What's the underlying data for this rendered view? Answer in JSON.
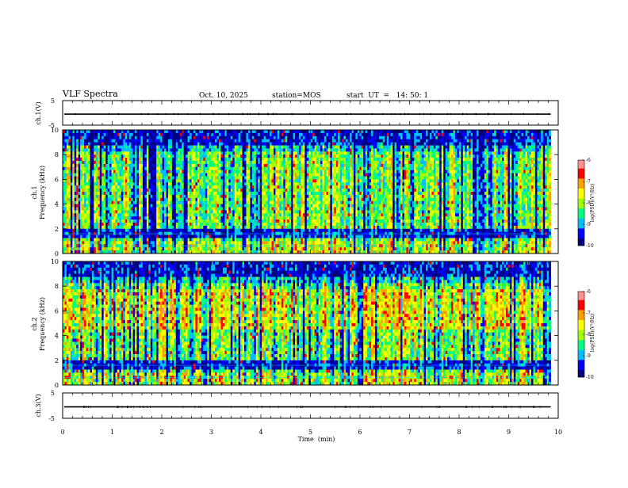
{
  "header": {
    "title": "VLF Spectra",
    "date": "Oct. 10, 2025",
    "station": "station=MOS",
    "start": "start  UT  =   14: 50: 1"
  },
  "chart_data": [
    {
      "type": "line",
      "name": "ch1-waveform",
      "ylabel": "ch.1(V)",
      "ylim": [
        -5,
        5
      ],
      "yticks": [
        "5",
        "-5"
      ],
      "xlim": [
        0,
        10
      ],
      "level": -0.5
    },
    {
      "type": "heatmap",
      "name": "ch1-spectrogram",
      "ylabel": "ch.1\nFrequency (kHz)",
      "ylabel_lines": [
        "ch.1",
        "Frequency (kHz)"
      ],
      "ylim": [
        0,
        10
      ],
      "yticks": [
        "0",
        "2",
        "4",
        "6",
        "8",
        "10"
      ],
      "xlim": [
        0,
        9.85
      ],
      "colorbar": {
        "label": "log(PSD)(V²/Hz)",
        "range": [
          -10,
          -6
        ],
        "ticks": [
          "-6",
          "-7",
          "-8",
          "-9",
          "-10"
        ]
      },
      "grid_lines_khz": [
        1.6,
        0.6
      ]
    },
    {
      "type": "heatmap",
      "name": "ch2-spectrogram",
      "ylabel": "ch.2\nFrequency (kHz)",
      "ylabel_lines": [
        "ch.2",
        "Frequency (kHz)"
      ],
      "ylim": [
        0,
        10
      ],
      "yticks": [
        "0",
        "2",
        "4",
        "6",
        "8",
        "10"
      ],
      "xlim": [
        0,
        9.85
      ],
      "colorbar": {
        "label": "log(PSD)(V²/Hz)",
        "range": [
          -10,
          -6
        ],
        "ticks": [
          "-6",
          "-7",
          "-8",
          "-9",
          "-10"
        ]
      },
      "grid_lines_khz": [
        1.6,
        0.6
      ]
    },
    {
      "type": "line",
      "name": "ch3-waveform",
      "ylabel": "ch.3(V)",
      "ylim": [
        -5,
        5
      ],
      "yticks": [
        "5",
        "-5"
      ],
      "xlim": [
        0,
        10
      ],
      "level": -0.5
    }
  ],
  "xaxis": {
    "label": "Time  (min)",
    "ticks": [
      "0",
      "1",
      "2",
      "3",
      "4",
      "5",
      "6",
      "7",
      "8",
      "9",
      "10"
    ],
    "range": [
      0,
      10
    ]
  },
  "colors": {
    "map": [
      "#00007f",
      "#0000ff",
      "#00bfff",
      "#00ff80",
      "#a0ff00",
      "#ffff00",
      "#ffa000",
      "#ff0000",
      "#ff9090",
      "#ffffff"
    ]
  }
}
